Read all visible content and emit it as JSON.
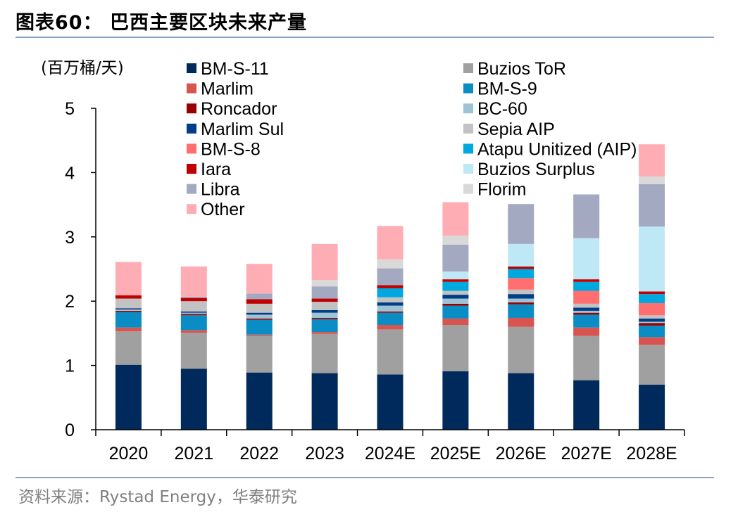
{
  "header": {
    "title": "图表60：  巴西主要区块未来产量"
  },
  "footer": {
    "source": "资料来源：Rystad Energy，华泰研究"
  },
  "chart_data": {
    "type": "bar",
    "stacked": true,
    "title": "巴西主要区块未来产量",
    "ylabel": "(百万桶/天)",
    "xlabel": "",
    "ylim": [
      0,
      5
    ],
    "yticks": [
      "0",
      "1",
      "2",
      "3",
      "4",
      "5"
    ],
    "categories": [
      "2020",
      "2021",
      "2022",
      "2023",
      "2024E",
      "2025E",
      "2026E",
      "2027E",
      "2028E"
    ],
    "legend_position": "top",
    "series": [
      {
        "name": "BM-S-11",
        "color": "#002a5c",
        "values": [
          1.01,
          0.95,
          0.89,
          0.88,
          0.86,
          0.91,
          0.88,
          0.77,
          0.7
        ]
      },
      {
        "name": "Buzios ToR",
        "color": "#a0a0a0",
        "values": [
          0.52,
          0.56,
          0.57,
          0.61,
          0.7,
          0.72,
          0.72,
          0.69,
          0.62
        ]
      },
      {
        "name": "Marlim",
        "color": "#d9534f",
        "values": [
          0.06,
          0.04,
          0.02,
          0.03,
          0.07,
          0.1,
          0.14,
          0.13,
          0.12
        ]
      },
      {
        "name": "BM-S-9",
        "color": "#0a8cc4",
        "values": [
          0.24,
          0.23,
          0.23,
          0.2,
          0.19,
          0.2,
          0.21,
          0.2,
          0.18
        ]
      },
      {
        "name": "Roncador",
        "color": "#990000",
        "values": [
          0.02,
          0.02,
          0.02,
          0.02,
          0.02,
          0.03,
          0.03,
          0.03,
          0.04
        ]
      },
      {
        "name": "BC-60",
        "color": "#9ec3d4",
        "values": [
          0.02,
          0.02,
          0.06,
          0.08,
          0.09,
          0.08,
          0.06,
          0.03,
          0.02
        ]
      },
      {
        "name": "Marlim Sul",
        "color": "#003f87",
        "values": [
          0.02,
          0.02,
          0.03,
          0.04,
          0.05,
          0.06,
          0.07,
          0.05,
          0.05
        ]
      },
      {
        "name": "Sepia AIP",
        "color": "#c2c2c2",
        "values": [
          0.15,
          0.16,
          0.14,
          0.13,
          0.08,
          0.06,
          0.07,
          0.06,
          0.05
        ]
      },
      {
        "name": "BM-S-8",
        "color": "#ff6f6f",
        "values": [
          0.0,
          0.0,
          0.0,
          0.0,
          0.0,
          0.0,
          0.18,
          0.2,
          0.19
        ]
      },
      {
        "name": "Atapu Unitized (AIP)",
        "color": "#00a8e0",
        "values": [
          0.0,
          0.0,
          0.0,
          0.0,
          0.14,
          0.14,
          0.14,
          0.14,
          0.14
        ]
      },
      {
        "name": "Iara",
        "color": "#c00000",
        "values": [
          0.05,
          0.05,
          0.07,
          0.05,
          0.05,
          0.04,
          0.04,
          0.04,
          0.04
        ]
      },
      {
        "name": "Buzios Surplus",
        "color": "#bfe8f7",
        "values": [
          0.0,
          0.0,
          0.0,
          0.0,
          0.0,
          0.12,
          0.35,
          0.64,
          1.01
        ]
      },
      {
        "name": "Libra",
        "color": "#a3a9c0",
        "values": [
          0.0,
          0.02,
          0.09,
          0.19,
          0.26,
          0.42,
          0.62,
          0.68,
          0.66
        ]
      },
      {
        "name": "Florim",
        "color": "#d9d9d9",
        "values": [
          0.0,
          0.0,
          0.0,
          0.1,
          0.14,
          0.14,
          0.0,
          0.0,
          0.12
        ]
      },
      {
        "name": "Other",
        "color": "#ffadb5",
        "values": [
          0.52,
          0.47,
          0.46,
          0.56,
          0.52,
          0.52,
          0.0,
          0.0,
          0.5
        ]
      }
    ]
  }
}
